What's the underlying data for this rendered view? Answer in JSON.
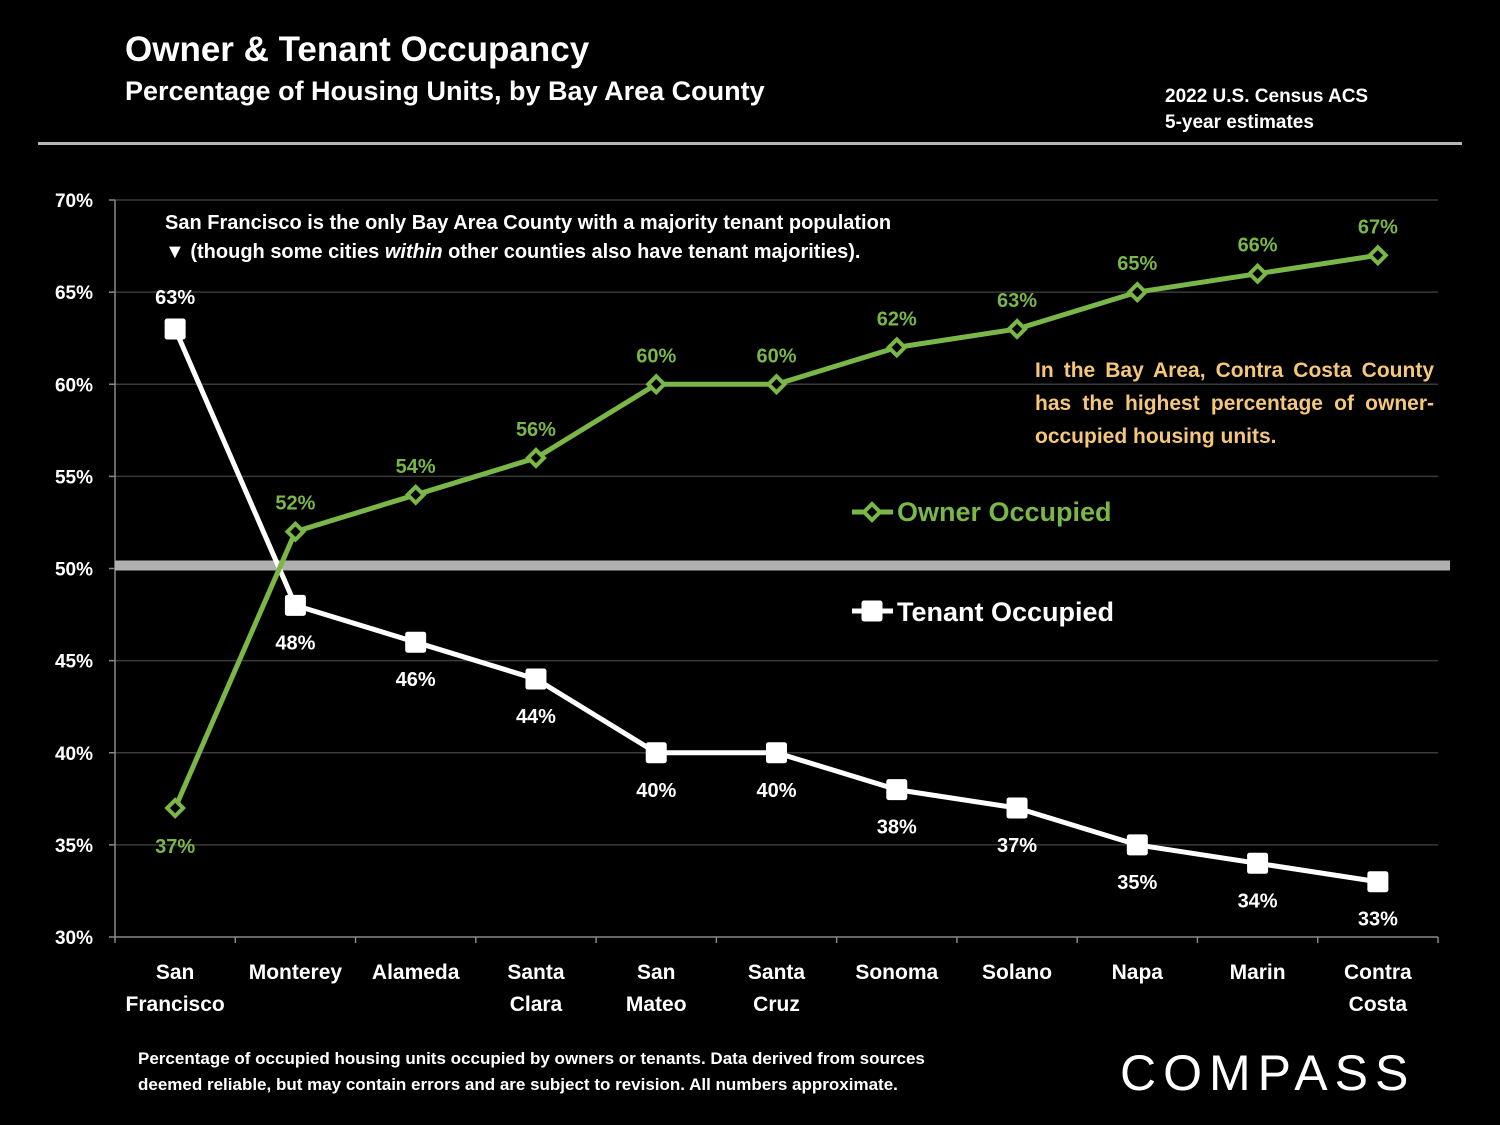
{
  "header": {
    "title": "Owner & Tenant Occupancy",
    "subtitle": "Percentage of Housing Units, by Bay Area County",
    "source_line1": "2022 U.S. Census ACS",
    "source_line2": "5-year estimates"
  },
  "annotations": {
    "note1_line1": "San Francisco is the only Bay Area County with a majority tenant population",
    "note1_line2_pre": "▼ (though some cities ",
    "note1_line2_em": "within",
    "note1_line2_post": " other counties also have tenant majorities).",
    "note2": "In the Bay Area, Contra Costa County has the highest percentage of owner-occupied housing units."
  },
  "footer": {
    "line1": "Percentage of occupied housing units occupied by owners or tenants. Data derived from sources",
    "line2": "deemed reliable, but may contain errors and are subject to revision.  All numbers approximate."
  },
  "logo": {
    "text": "COMPASS"
  },
  "colors": {
    "owner": "#7ab648",
    "tenant": "#ffffff",
    "grid": "#3a3a3a",
    "reference_line": "#b0b0b0",
    "note2": "#f5c77a"
  },
  "chart_data": {
    "type": "line",
    "title": "Owner & Tenant Occupancy",
    "subtitle": "Percentage of Housing Units, by Bay Area County",
    "categories": [
      [
        "San",
        "Francisco"
      ],
      [
        "Monterey"
      ],
      [
        "Alameda"
      ],
      [
        "Santa",
        "Clara"
      ],
      [
        "San",
        "Mateo"
      ],
      [
        "Santa",
        "Cruz"
      ],
      [
        "Sonoma"
      ],
      [
        "Solano"
      ],
      [
        "Napa"
      ],
      [
        "Marin"
      ],
      [
        "Contra",
        "Costa"
      ]
    ],
    "series": [
      {
        "name": "Owner Occupied",
        "values": [
          37,
          52,
          54,
          56,
          60,
          60,
          62,
          63,
          65,
          66,
          67
        ],
        "labels": [
          "37%",
          "52%",
          "54%",
          "56%",
          "60%",
          "60%",
          "62%",
          "63%",
          "65%",
          "66%",
          "67%"
        ],
        "marker": "diamond"
      },
      {
        "name": "Tenant Occupied",
        "values": [
          63,
          48,
          46,
          44,
          40,
          40,
          38,
          37,
          35,
          34,
          33
        ],
        "labels": [
          "63%",
          "48%",
          "46%",
          "44%",
          "40%",
          "40%",
          "38%",
          "37%",
          "35%",
          "34%",
          "33%"
        ],
        "marker": "square"
      }
    ],
    "ylim": [
      30,
      70
    ],
    "yticks": [
      30,
      35,
      40,
      45,
      50,
      55,
      60,
      65,
      70
    ],
    "ytick_labels": [
      "30%",
      "35%",
      "40%",
      "45%",
      "50%",
      "55%",
      "60%",
      "65%",
      "70%"
    ],
    "reference_line": 50,
    "grid": true,
    "legend": "inside-right"
  }
}
